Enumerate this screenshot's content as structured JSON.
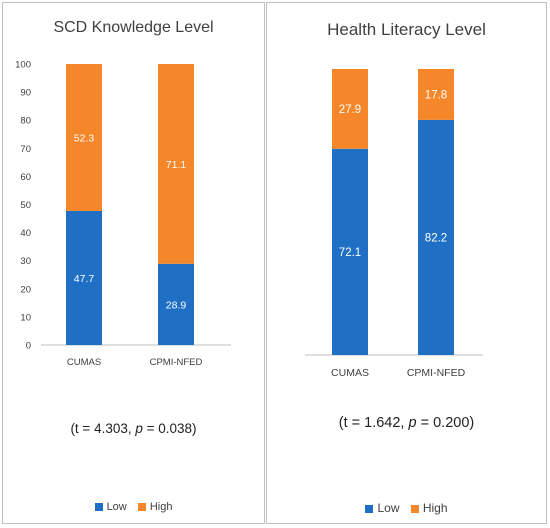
{
  "colors": {
    "low": "#1f6fc5",
    "high": "#f5872a"
  },
  "chart_data": [
    {
      "type": "bar",
      "stacked": true,
      "title": "SCD Knowledge Level",
      "categories": [
        "CUMAS",
        "CPMI-NFED"
      ],
      "series": [
        {
          "name": "Low",
          "values": [
            47.7,
            28.9
          ]
        },
        {
          "name": "High",
          "values": [
            52.3,
            71.1
          ]
        }
      ],
      "ylim": [
        0,
        100
      ],
      "yticks": [
        "0",
        "10",
        "20",
        "30",
        "40",
        "50",
        "60",
        "70",
        "80",
        "90",
        "100"
      ],
      "value_labels": [
        [
          "47.7",
          "28.9"
        ],
        [
          "52.3",
          "71.1"
        ]
      ],
      "grid": false,
      "legend": "bottom",
      "annotation": {
        "prefix": "(t = 4.303, ",
        "p_symbol": "p",
        "suffix": " = 0.038)"
      }
    },
    {
      "type": "bar",
      "stacked": true,
      "title": "Health Literacy Level",
      "categories": [
        "CUMAS",
        "CPMI-NFED"
      ],
      "series": [
        {
          "name": "Low",
          "values": [
            72.1,
            82.2
          ]
        },
        {
          "name": "High",
          "values": [
            27.9,
            17.8
          ]
        }
      ],
      "ylim": [
        0,
        100
      ],
      "value_labels": [
        [
          "72.1",
          "82.2"
        ],
        [
          "27.9",
          "17.8"
        ]
      ],
      "grid": false,
      "legend": "bottom",
      "annotation": {
        "prefix": "(t = 1.642, ",
        "p_symbol": "p",
        "suffix": " = 0.200)"
      }
    }
  ]
}
